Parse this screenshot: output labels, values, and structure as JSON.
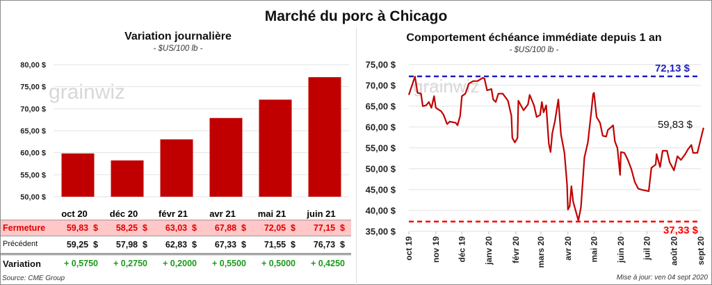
{
  "title": "Marché du porc à Chicago",
  "left": {
    "subtitle": "Variation journalière",
    "unit": "- $US/100 lb -",
    "table": {
      "columns": [
        "oct 20",
        "déc 20",
        "févr 21",
        "avr 21",
        "mai 21",
        "juin 21"
      ],
      "rows": [
        {
          "label": "Fermeture",
          "values": [
            "59,83  $",
            "58,25  $",
            "63,03  $",
            "67,88  $",
            "72,05  $",
            "77,15  $"
          ]
        },
        {
          "label": "Précédent",
          "values": [
            "59,25  $",
            "57,98  $",
            "62,83  $",
            "67,33  $",
            "71,55  $",
            "76,73  $"
          ]
        },
        {
          "label": "Variation",
          "values": [
            "+ 0,5750",
            "+ 0,2750",
            "+ 0,2000",
            "+ 0,5500",
            "+ 0,5000",
            "+ 0,4250"
          ]
        }
      ]
    },
    "source": "Source: CME Group"
  },
  "right": {
    "subtitle": "Comportement  échéance immédiate depuis 1 an",
    "unit": "- $US/100 lb -",
    "updated": "Mise à jour: ven 04 sept 2020"
  },
  "watermark": "grainwiz",
  "colors": {
    "bar": "#c00000",
    "line": "#c00000",
    "max": "#1f1fbf",
    "min": "#ff0000",
    "highlight_row": "#ffc7c7",
    "positive": "#1a9a1a"
  },
  "chart_data": [
    {
      "type": "bar",
      "categories": [
        "oct 20",
        "déc 20",
        "févr 21",
        "avr 21",
        "mai 21",
        "juin 21"
      ],
      "values": [
        59.83,
        58.25,
        63.03,
        67.88,
        72.05,
        77.15
      ],
      "ylim": [
        50,
        80
      ],
      "yticks": [
        "50,00 $",
        "55,00 $",
        "60,00 $",
        "65,00 $",
        "70,00 $",
        "75,00 $",
        "80,00 $"
      ],
      "grid": true
    },
    {
      "type": "line",
      "ylim": [
        35,
        75
      ],
      "yticks": [
        "35,00 $",
        "40,00 $",
        "45,00 $",
        "50,00 $",
        "55,00 $",
        "60,00 $",
        "65,00 $",
        "70,00 $",
        "75,00 $"
      ],
      "xticks": [
        "oct 19",
        "nov 19",
        "déc 19",
        "janv 20",
        "févr 20",
        "mars 20",
        "avr 20",
        "mai 20",
        "juin 20",
        "juil 20",
        "août 20",
        "sept 20"
      ],
      "grid": true,
      "max": {
        "value": 72.13,
        "label": "72,13 $"
      },
      "min": {
        "value": 37.33,
        "label": "37,33 $"
      },
      "last": {
        "value": 59.83,
        "label": "59,83 $"
      },
      "points": [
        [
          "2019-10-01",
          67.7
        ],
        [
          "2019-10-04",
          69.6
        ],
        [
          "2019-10-08",
          72.1
        ],
        [
          "2019-10-11",
          68.2
        ],
        [
          "2019-10-15",
          68
        ],
        [
          "2019-10-17",
          65
        ],
        [
          "2019-10-21",
          65.2
        ],
        [
          "2019-10-24",
          66
        ],
        [
          "2019-10-27",
          64.6
        ],
        [
          "2019-10-30",
          67.4
        ],
        [
          "2019-11-01",
          64.6
        ],
        [
          "2019-11-07",
          63.8
        ],
        [
          "2019-11-10",
          62.9
        ],
        [
          "2019-11-14",
          60.7
        ],
        [
          "2019-11-17",
          61.3
        ],
        [
          "2019-11-24",
          61
        ],
        [
          "2019-11-26",
          60.4
        ],
        [
          "2019-11-29",
          62.7
        ],
        [
          "2019-12-01",
          67.4
        ],
        [
          "2019-12-05",
          68
        ],
        [
          "2019-12-09",
          70.4
        ],
        [
          "2019-12-14",
          71
        ],
        [
          "2019-12-19",
          71
        ],
        [
          "2019-12-25",
          71.8
        ],
        [
          "2019-12-27",
          71.6
        ],
        [
          "2019-12-30",
          68.8
        ],
        [
          "2020-01-04",
          69.1
        ],
        [
          "2020-01-06",
          66.6
        ],
        [
          "2020-01-09",
          66
        ],
        [
          "2020-01-12",
          68
        ],
        [
          "2020-01-17",
          68
        ],
        [
          "2020-01-23",
          66.3
        ],
        [
          "2020-01-27",
          62.7
        ],
        [
          "2020-01-28",
          57.4
        ],
        [
          "2020-01-31",
          56.3
        ],
        [
          "2020-02-03",
          57.4
        ],
        [
          "2020-02-04",
          66.3
        ],
        [
          "2020-02-10",
          64
        ],
        [
          "2020-02-15",
          65.4
        ],
        [
          "2020-02-17",
          67.7
        ],
        [
          "2020-02-22",
          65.2
        ],
        [
          "2020-02-25",
          62.4
        ],
        [
          "2020-02-29",
          62.9
        ],
        [
          "2020-03-02",
          66
        ],
        [
          "2020-03-04",
          63.5
        ],
        [
          "2020-03-07",
          65.2
        ],
        [
          "2020-03-10",
          56
        ],
        [
          "2020-03-12",
          54
        ],
        [
          "2020-03-14",
          58.5
        ],
        [
          "2020-03-17",
          61.3
        ],
        [
          "2020-03-21",
          66.6
        ],
        [
          "2020-03-24",
          58.2
        ],
        [
          "2020-03-28",
          53.8
        ],
        [
          "2020-03-31",
          46.3
        ],
        [
          "2020-04-01",
          40.2
        ],
        [
          "2020-04-03",
          41
        ],
        [
          "2020-04-05",
          45.8
        ],
        [
          "2020-04-07",
          42.1
        ],
        [
          "2020-04-11",
          39.1
        ],
        [
          "2020-04-13",
          37.6
        ],
        [
          "2020-04-16",
          40.7
        ],
        [
          "2020-04-20",
          52.7
        ],
        [
          "2020-04-24",
          56.3
        ],
        [
          "2020-04-28",
          63.8
        ],
        [
          "2020-04-30",
          67.9
        ],
        [
          "2020-05-01",
          68.2
        ],
        [
          "2020-05-04",
          62.4
        ],
        [
          "2020-05-08",
          61
        ],
        [
          "2020-05-11",
          57.9
        ],
        [
          "2020-05-15",
          57.7
        ],
        [
          "2020-05-17",
          59.3
        ],
        [
          "2020-05-23",
          60.4
        ],
        [
          "2020-05-25",
          56.6
        ],
        [
          "2020-05-28",
          54.9
        ],
        [
          "2020-05-31",
          48.5
        ],
        [
          "2020-06-01",
          54
        ],
        [
          "2020-06-05",
          53.8
        ],
        [
          "2020-06-09",
          52.1
        ],
        [
          "2020-06-13",
          49.9
        ],
        [
          "2020-06-17",
          46.8
        ],
        [
          "2020-06-21",
          45.2
        ],
        [
          "2020-06-26",
          44.9
        ],
        [
          "2020-07-03",
          44.6
        ],
        [
          "2020-07-06",
          50.2
        ],
        [
          "2020-07-11",
          51
        ],
        [
          "2020-07-12",
          53.5
        ],
        [
          "2020-07-16",
          50.4
        ],
        [
          "2020-07-19",
          54.3
        ],
        [
          "2020-07-24",
          54.3
        ],
        [
          "2020-07-27",
          51.6
        ],
        [
          "2020-08-01",
          49.6
        ],
        [
          "2020-08-05",
          53
        ],
        [
          "2020-08-09",
          52.1
        ],
        [
          "2020-08-14",
          53.5
        ],
        [
          "2020-08-17",
          54.6
        ],
        [
          "2020-08-21",
          55.7
        ],
        [
          "2020-08-23",
          53.8
        ],
        [
          "2020-08-28",
          53.8
        ],
        [
          "2020-09-04",
          59.83
        ]
      ]
    }
  ]
}
